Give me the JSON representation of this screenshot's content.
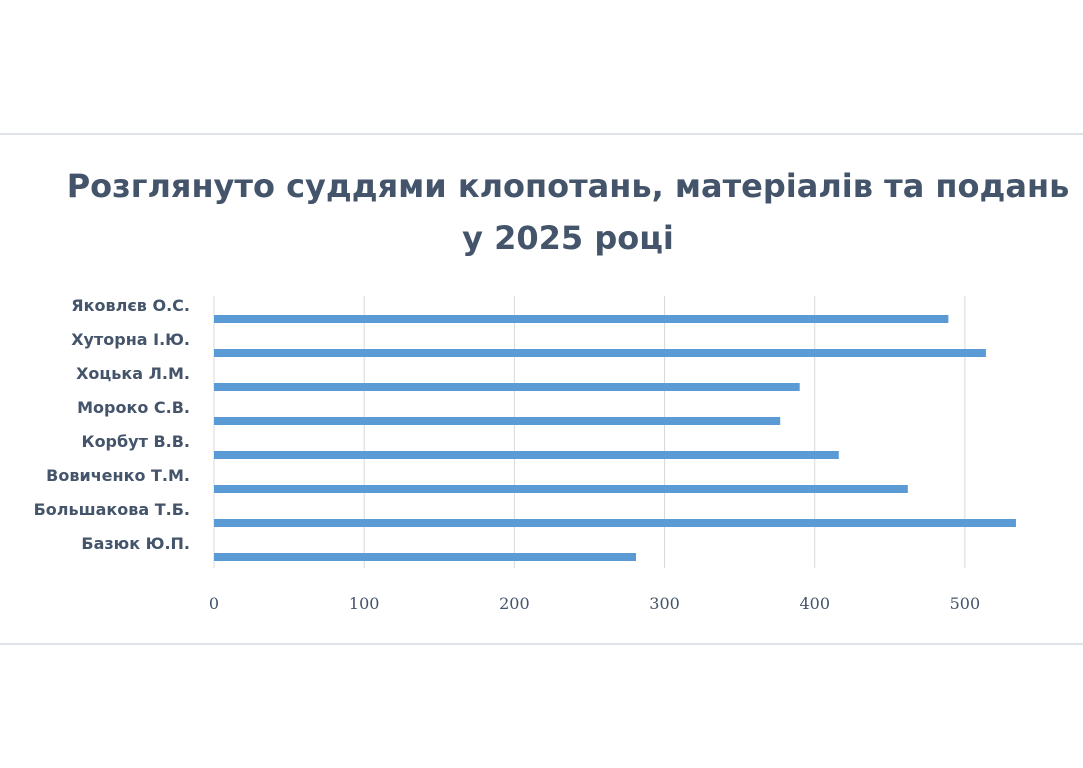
{
  "chart_data": {
    "type": "bar",
    "orientation": "horizontal",
    "title": "Розглянуто суддями клопотань, матеріалів та подань у 2025 році",
    "categories": [
      "Яковлєв О.С.",
      "Хуторна І.Ю.",
      "Хоцька Л.М.",
      "Мороко С.В.",
      "Корбут В.В.",
      "Вовиченко Т.М.",
      "Большакова Т.Б.",
      "Базюк Ю.П."
    ],
    "values": [
      489,
      514,
      390,
      377,
      416,
      462,
      534,
      281
    ],
    "xlim": [
      0,
      550
    ],
    "xticks": [
      0,
      100,
      200,
      300,
      400,
      500
    ],
    "xlabel": "",
    "ylabel": "",
    "grid": true,
    "legend": "none",
    "bar_color": "#5b9bd5"
  }
}
